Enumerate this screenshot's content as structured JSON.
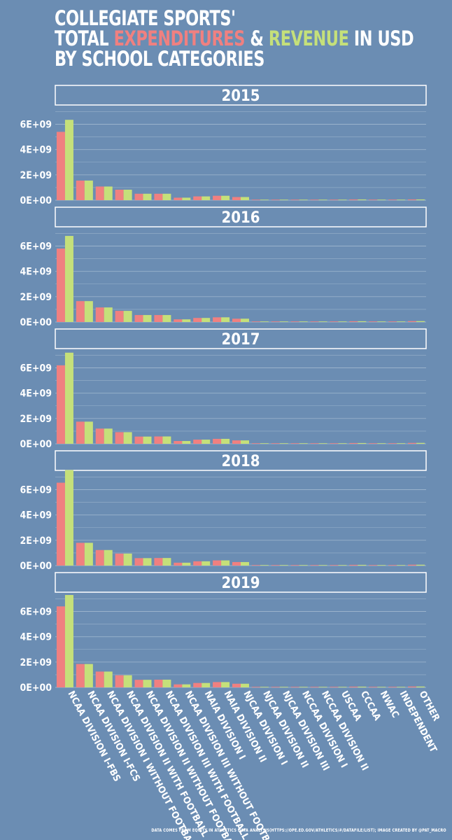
{
  "title": {
    "line1": "COLLEGIATE SPORTS'",
    "line2_prefix": "TOTAL ",
    "line2_expenditures": "EXPENDITURES",
    "line2_amp": " & ",
    "line2_revenue": "REVENUE",
    "line2_suffix": " IN USD",
    "line3": "BY SCHOOL CATEGORIES"
  },
  "colors": {
    "background": "#6b8db3",
    "expenditures": "#f08080",
    "revenue": "#c5e07a",
    "text": "#ffffff",
    "grid": "#9ab3cc"
  },
  "footnote": "DATA COMES FROM EQUITY IN ATHLETICS DATA ANALYSIS(HTTPS://OPE.ED.GOV/ATHLETICS/#/DATAFILE/LIST); IMAGE CREATED BY @PAT_MACRO",
  "chart_data": {
    "type": "bar",
    "grid": true,
    "y_tick_values": [
      0,
      2000000000,
      4000000000,
      6000000000
    ],
    "y_tick_labels": [
      "0E+00",
      "2E+09",
      "4E+09",
      "6E+09"
    ],
    "categories": [
      "NCAA DIVISION I-FBS",
      "NCAA DIVISION I-FCS",
      "NCAA DIVISION I WITHOUT FOOTBALL",
      "NCAA DIVISION II WITH FOOTBALL",
      "NCAA DIVISION II WITHOUT FOOTBALL",
      "NCAA DIVISION III WITH FOOTBALL",
      "NCAA DIVISION III WITHOUT FOOTBALL",
      "NAIA DIVISION I",
      "NAIA DIVISION II",
      "NJCAA DIVISION I",
      "NJCAA DIVISION II",
      "NJCAA DIVISION III",
      "NCCAA DIVISION I",
      "NCCAA DIVISION II",
      "USCAA",
      "CCCAA",
      "NWAC",
      "INDEPENDENT",
      "OTHER"
    ],
    "panels": [
      {
        "label": "2015",
        "ylim": [
          0,
          7300000000
        ],
        "series": [
          {
            "name": "EXPENDITURES",
            "values": [
              5400000000,
              1550000000,
              1080000000,
              830000000,
              510000000,
              510000000,
              200000000,
              300000000,
              350000000,
              250000000,
              40000000,
              20000000,
              10000000,
              10000000,
              10000000,
              60000000,
              10000000,
              10000000,
              60000000
            ]
          },
          {
            "name": "REVENUE",
            "values": [
              6350000000,
              1550000000,
              1080000000,
              830000000,
              510000000,
              510000000,
              200000000,
              300000000,
              350000000,
              250000000,
              40000000,
              20000000,
              10000000,
              10000000,
              10000000,
              60000000,
              10000000,
              10000000,
              60000000
            ]
          }
        ]
      },
      {
        "label": "2016",
        "ylim": [
          0,
          7300000000
        ],
        "series": [
          {
            "name": "EXPENDITURES",
            "values": [
              5800000000,
              1650000000,
              1150000000,
              880000000,
              550000000,
              550000000,
              210000000,
              320000000,
              370000000,
              260000000,
              40000000,
              20000000,
              10000000,
              10000000,
              10000000,
              60000000,
              10000000,
              10000000,
              70000000
            ]
          },
          {
            "name": "REVENUE",
            "values": [
              6800000000,
              1650000000,
              1150000000,
              880000000,
              550000000,
              550000000,
              210000000,
              320000000,
              370000000,
              260000000,
              40000000,
              20000000,
              10000000,
              10000000,
              10000000,
              60000000,
              10000000,
              10000000,
              70000000
            ]
          }
        ]
      },
      {
        "label": "2017",
        "ylim": [
          0,
          7300000000
        ],
        "series": [
          {
            "name": "EXPENDITURES",
            "values": [
              6200000000,
              1750000000,
              1200000000,
              920000000,
              570000000,
              580000000,
              220000000,
              330000000,
              390000000,
              270000000,
              40000000,
              20000000,
              10000000,
              10000000,
              10000000,
              60000000,
              10000000,
              10000000,
              70000000
            ]
          },
          {
            "name": "REVENUE",
            "values": [
              7200000000,
              1750000000,
              1200000000,
              920000000,
              570000000,
              580000000,
              220000000,
              330000000,
              390000000,
              270000000,
              40000000,
              20000000,
              10000000,
              10000000,
              10000000,
              60000000,
              10000000,
              10000000,
              70000000
            ]
          }
        ]
      },
      {
        "label": "2018",
        "ylim": [
          0,
          7300000000
        ],
        "series": [
          {
            "name": "EXPENDITURES",
            "values": [
              6550000000,
              1800000000,
              1230000000,
              950000000,
              590000000,
              600000000,
              230000000,
              340000000,
              410000000,
              280000000,
              40000000,
              20000000,
              10000000,
              10000000,
              10000000,
              60000000,
              10000000,
              10000000,
              70000000
            ]
          },
          {
            "name": "REVENUE",
            "values": [
              7550000000,
              1800000000,
              1230000000,
              950000000,
              590000000,
              600000000,
              230000000,
              340000000,
              410000000,
              280000000,
              40000000,
              20000000,
              10000000,
              10000000,
              10000000,
              60000000,
              10000000,
              10000000,
              70000000
            ]
          }
        ]
      },
      {
        "label": "2019",
        "ylim": [
          0,
          7300000000
        ],
        "series": [
          {
            "name": "EXPENDITURES",
            "values": [
              6400000000,
              1850000000,
              1250000000,
              960000000,
              600000000,
              610000000,
              240000000,
              350000000,
              420000000,
              290000000,
              40000000,
              20000000,
              10000000,
              10000000,
              10000000,
              60000000,
              10000000,
              10000000,
              70000000
            ]
          },
          {
            "name": "REVENUE",
            "values": [
              7300000000,
              1850000000,
              1250000000,
              960000000,
              600000000,
              610000000,
              240000000,
              350000000,
              420000000,
              290000000,
              40000000,
              20000000,
              10000000,
              10000000,
              10000000,
              60000000,
              10000000,
              10000000,
              70000000
            ]
          }
        ]
      }
    ]
  }
}
